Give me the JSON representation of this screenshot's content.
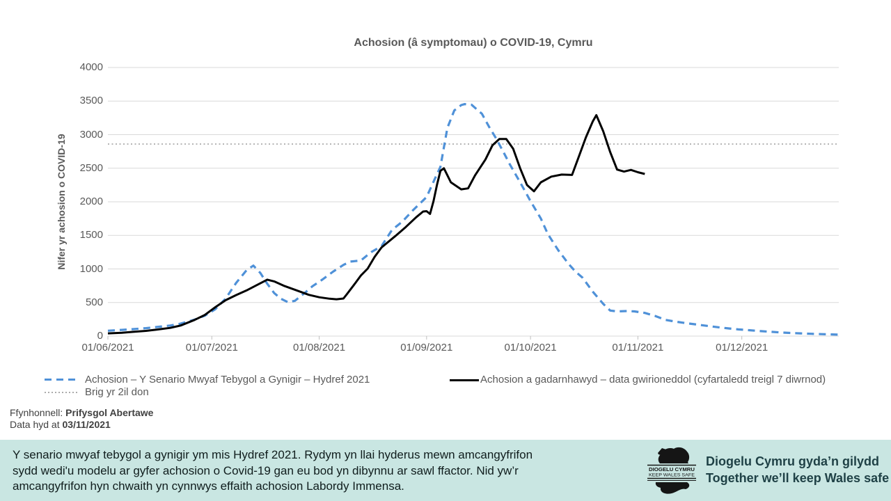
{
  "chart_data": {
    "type": "line",
    "title": "Achosion (â symptomau) o COVID-19, Cymru",
    "xlabel": "",
    "ylabel": "Nifer yr achosion o COVID-19",
    "ylim": [
      0,
      4000
    ],
    "yticks": [
      0,
      500,
      1000,
      1500,
      2000,
      2500,
      3000,
      3500,
      4000
    ],
    "x_tick_labels": [
      "01/06/2021",
      "01/07/2021",
      "01/08/2021",
      "01/09/2021",
      "01/10/2021",
      "01/11/2021",
      "01/12/2021"
    ],
    "x_tick_days": [
      0,
      30,
      61,
      92,
      122,
      153,
      183
    ],
    "x_domain_days": [
      0,
      211
    ],
    "grid": true,
    "grid_color": "#d9d9d9",
    "legend_position": "bottom",
    "series": [
      {
        "id": "scenario-line",
        "name": "Achosion – Y Senario Mwyaf Tebygol a Gynigir – Hydref 2021",
        "color": "#4f91d8",
        "style": "dashed",
        "dash": "10 7",
        "width": 3.2,
        "z": 1,
        "points": [
          [
            0,
            80
          ],
          [
            4,
            92
          ],
          [
            7,
            103
          ],
          [
            11,
            118
          ],
          [
            14,
            135
          ],
          [
            18,
            158
          ],
          [
            21,
            185
          ],
          [
            25,
            245
          ],
          [
            28,
            305
          ],
          [
            31,
            400
          ],
          [
            34,
            560
          ],
          [
            37,
            790
          ],
          [
            40,
            980
          ],
          [
            42,
            1050
          ],
          [
            44,
            940
          ],
          [
            46,
            780
          ],
          [
            48,
            640
          ],
          [
            50,
            555
          ],
          [
            52,
            505
          ],
          [
            54,
            525
          ],
          [
            57,
            650
          ],
          [
            59,
            740
          ],
          [
            62,
            845
          ],
          [
            65,
            960
          ],
          [
            68,
            1060
          ],
          [
            70,
            1110
          ],
          [
            73,
            1125
          ],
          [
            76,
            1250
          ],
          [
            79,
            1340
          ],
          [
            82,
            1580
          ],
          [
            85,
            1705
          ],
          [
            88,
            1870
          ],
          [
            92,
            2070
          ],
          [
            94,
            2300
          ],
          [
            96,
            2520
          ],
          [
            98,
            3100
          ],
          [
            100,
            3360
          ],
          [
            102,
            3440
          ],
          [
            103,
            3455
          ],
          [
            105,
            3445
          ],
          [
            108,
            3310
          ],
          [
            110,
            3120
          ],
          [
            112,
            2950
          ],
          [
            114,
            2760
          ],
          [
            116,
            2560
          ],
          [
            119,
            2290
          ],
          [
            122,
            2010
          ],
          [
            125,
            1750
          ],
          [
            127,
            1520
          ],
          [
            130,
            1280
          ],
          [
            133,
            1075
          ],
          [
            135,
            960
          ],
          [
            137,
            870
          ],
          [
            140,
            660
          ],
          [
            143,
            480
          ],
          [
            145,
            380
          ],
          [
            147,
            368
          ],
          [
            150,
            373
          ],
          [
            152,
            368
          ],
          [
            155,
            345
          ],
          [
            158,
            300
          ],
          [
            161,
            240
          ],
          [
            164,
            215
          ],
          [
            167,
            192
          ],
          [
            170,
            172
          ],
          [
            173,
            152
          ],
          [
            176,
            133
          ],
          [
            179,
            115
          ],
          [
            182,
            100
          ],
          [
            185,
            88
          ],
          [
            188,
            76
          ],
          [
            191,
            65
          ],
          [
            194,
            55
          ],
          [
            197,
            47
          ],
          [
            200,
            40
          ],
          [
            203,
            34
          ],
          [
            206,
            29
          ],
          [
            209,
            25
          ],
          [
            211,
            22
          ]
        ]
      },
      {
        "id": "actual-line",
        "name": "Achosion a gadarnhawyd – data gwirioneddol (cyfartaledd treigl 7 diwrnod)",
        "color": "#000000",
        "style": "solid",
        "dash": "",
        "width": 3,
        "z": 2,
        "points": [
          [
            0,
            40
          ],
          [
            4,
            50
          ],
          [
            7,
            62
          ],
          [
            11,
            78
          ],
          [
            14,
            95
          ],
          [
            18,
            122
          ],
          [
            21,
            158
          ],
          [
            25,
            240
          ],
          [
            28,
            315
          ],
          [
            31,
            430
          ],
          [
            34,
            535
          ],
          [
            37,
            610
          ],
          [
            40,
            680
          ],
          [
            43,
            760
          ],
          [
            46,
            840
          ],
          [
            48,
            815
          ],
          [
            51,
            745
          ],
          [
            54,
            690
          ],
          [
            58,
            615
          ],
          [
            61,
            578
          ],
          [
            64,
            556
          ],
          [
            66,
            548
          ],
          [
            68,
            560
          ],
          [
            69,
            625
          ],
          [
            71,
            760
          ],
          [
            73,
            900
          ],
          [
            75,
            1005
          ],
          [
            77,
            1180
          ],
          [
            79,
            1320
          ],
          [
            83,
            1490
          ],
          [
            86,
            1625
          ],
          [
            89,
            1770
          ],
          [
            91,
            1855
          ],
          [
            92,
            1860
          ],
          [
            93,
            1820
          ],
          [
            94,
            2010
          ],
          [
            95,
            2250
          ],
          [
            96,
            2460
          ],
          [
            97,
            2500
          ],
          [
            99,
            2290
          ],
          [
            102,
            2185
          ],
          [
            104,
            2200
          ],
          [
            106,
            2395
          ],
          [
            109,
            2630
          ],
          [
            111,
            2840
          ],
          [
            113,
            2935
          ],
          [
            115,
            2935
          ],
          [
            117,
            2790
          ],
          [
            119,
            2500
          ],
          [
            121,
            2250
          ],
          [
            123,
            2156
          ],
          [
            125,
            2290
          ],
          [
            128,
            2375
          ],
          [
            131,
            2405
          ],
          [
            134,
            2400
          ],
          [
            136,
            2680
          ],
          [
            138,
            2960
          ],
          [
            140,
            3200
          ],
          [
            141,
            3290
          ],
          [
            143,
            3050
          ],
          [
            145,
            2740
          ],
          [
            147,
            2480
          ],
          [
            149,
            2450
          ],
          [
            151,
            2475
          ],
          [
            153,
            2440
          ],
          [
            155,
            2415
          ]
        ]
      },
      {
        "id": "second-wave-peak-line",
        "name": "Brig yr 2il don",
        "color": "#ababab",
        "style": "dotted",
        "dash": "2 3.5",
        "width": 1.7,
        "z": 0,
        "points": [
          [
            0,
            2860
          ],
          [
            211,
            2860
          ]
        ]
      }
    ]
  },
  "legend": {
    "scenario": "Achosion – Y Senario Mwyaf Tebygol a Gynigir – Hydref 2021",
    "actual": "Achosion a gadarnhawyd – data gwirioneddol (cyfartaledd treigl 7 diwrnod)",
    "peak": "Brig yr 2il don"
  },
  "source": {
    "label": "Ffynhonnell:",
    "value": "Prifysgol Abertawe",
    "data_label": "Data hyd at",
    "data_value": "03/11/2021"
  },
  "footer": {
    "bg_color": "#c9e6e2",
    "note_lines": [
      "Y senario mwyaf tebygol a gynigir ym mis Hydref 2021. Rydym yn llai hyderus mewn amcangyfrifon",
      "sydd wedi'u modelu ar gyfer achosion o Covid-19 gan eu bod yn dibynnu ar sawl ffactor. Nid yw’r",
      "amcangyfrifon hyn chwaith yn cynnwys effaith achosion Labordy Immensa."
    ],
    "logo": {
      "line1": "DIOGELU CYMRU",
      "line2": "KEEP WALES SAFE"
    },
    "tagline_cy": "Diogelu Cymru gyda’n gilydd",
    "tagline_en": "Together we’ll keep Wales safe"
  }
}
